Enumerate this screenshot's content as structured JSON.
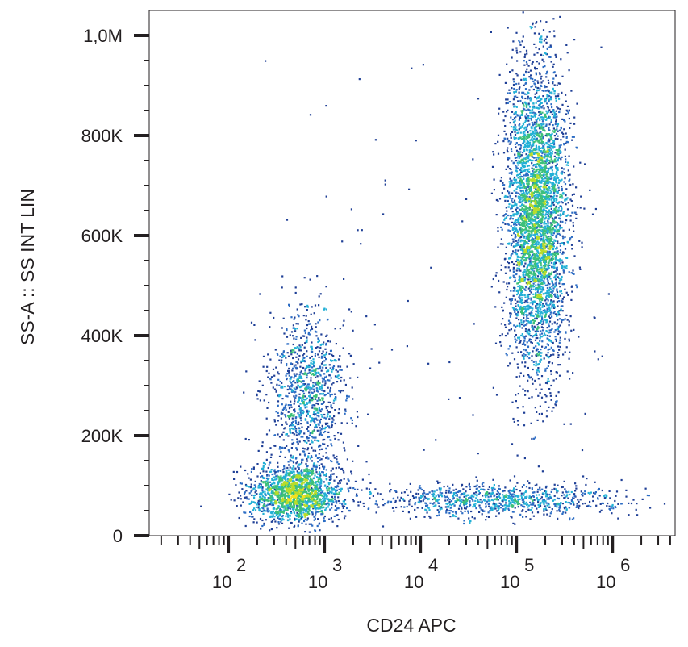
{
  "chart_data": {
    "type": "scatter",
    "subtype": "flow-cytometry density dot plot",
    "title": "",
    "xlabel": "CD24 APC",
    "ylabel": "SS-A :: SS INT LIN",
    "x_scale": "log",
    "y_scale": "linear",
    "xlim": [
      15,
      4500000
    ],
    "ylim": [
      0,
      1050000
    ],
    "x_ticks": [
      {
        "value": 100,
        "base": "10",
        "exp": "2"
      },
      {
        "value": 1000,
        "base": "10",
        "exp": "3"
      },
      {
        "value": 10000,
        "base": "10",
        "exp": "4"
      },
      {
        "value": 100000,
        "base": "10",
        "exp": "5"
      },
      {
        "value": 1000000,
        "base": "10",
        "exp": "6"
      }
    ],
    "y_ticks": [
      {
        "value": 0,
        "label": "0"
      },
      {
        "value": 200000,
        "label": "200K"
      },
      {
        "value": 400000,
        "label": "400K"
      },
      {
        "value": 600000,
        "label": "600K"
      },
      {
        "value": 800000,
        "label": "800K"
      },
      {
        "value": 1000000,
        "label": "1,0M"
      }
    ],
    "grid": false,
    "density_colors": [
      "#1f3f96",
      "#2b6cc4",
      "#22b0d6",
      "#3cc07a",
      "#b8dc2a",
      "#f4e11e",
      "#f89b1c",
      "#e8281f"
    ],
    "populations": [
      {
        "x_center": 500,
        "y_center": 85000,
        "x_spread_decades": 0.24,
        "y_spread": 28000,
        "events": 1700
      },
      {
        "x_center": 650,
        "y_center": 280000,
        "x_spread_decades": 0.2,
        "y_spread": 85000,
        "events": 1100
      },
      {
        "x_center": 160000,
        "y_center": 640000,
        "x_spread_decades": 0.16,
        "y_spread": 150000,
        "events": 4200
      },
      {
        "x_center": 60000,
        "y_center": 72000,
        "x_spread_decades": 0.65,
        "y_spread": 16000,
        "events": 900
      }
    ]
  }
}
